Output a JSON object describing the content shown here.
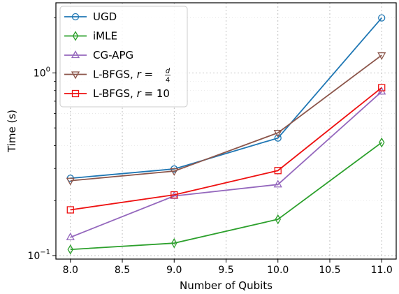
{
  "chart_data": {
    "type": "line",
    "xlabel": "Number of Qubits",
    "ylabel": "Time (s)",
    "yscale": "log",
    "xlim": [
      7.86,
      11.14
    ],
    "ylim": [
      0.0957,
      2.42
    ],
    "grid": true,
    "legend_position": "top-left",
    "x_ticks": [
      8.0,
      8.5,
      9.0,
      9.5,
      10.0,
      10.5,
      11.0
    ],
    "x_tick_labels": [
      "8.0",
      "8.5",
      "9.0",
      "9.5",
      "10.0",
      "10.5",
      "11.0"
    ],
    "y_ticks": [
      {
        "value": 0.1,
        "base": "10",
        "exp": "−1"
      },
      {
        "value": 1.0,
        "base": "10",
        "exp": "0"
      }
    ],
    "x": [
      8,
      9,
      10,
      11
    ],
    "series": [
      {
        "name": "UGD",
        "color": "#1f77b4",
        "marker": "circle",
        "values": [
          0.265,
          0.298,
          0.44,
          2.0
        ]
      },
      {
        "name": "iMLE",
        "color": "#2ca02c",
        "marker": "thin-diamond",
        "values": [
          0.108,
          0.117,
          0.158,
          0.416
        ]
      },
      {
        "name": "CG-APG",
        "color": "#9467bd",
        "marker": "triangle-up",
        "values": [
          0.126,
          0.212,
          0.245,
          0.79
        ]
      },
      {
        "name_parts": [
          "L-BFGS, ",
          "r",
          " = ",
          "d",
          "4"
        ],
        "color": "#8c564b",
        "marker": "triangle-down",
        "values": [
          0.257,
          0.29,
          0.47,
          1.25
        ]
      },
      {
        "name_parts": [
          "L-BFGS, ",
          "r",
          " = 10"
        ],
        "color": "#ee1111",
        "marker": "square",
        "values": [
          0.178,
          0.215,
          0.292,
          0.83
        ]
      }
    ]
  }
}
